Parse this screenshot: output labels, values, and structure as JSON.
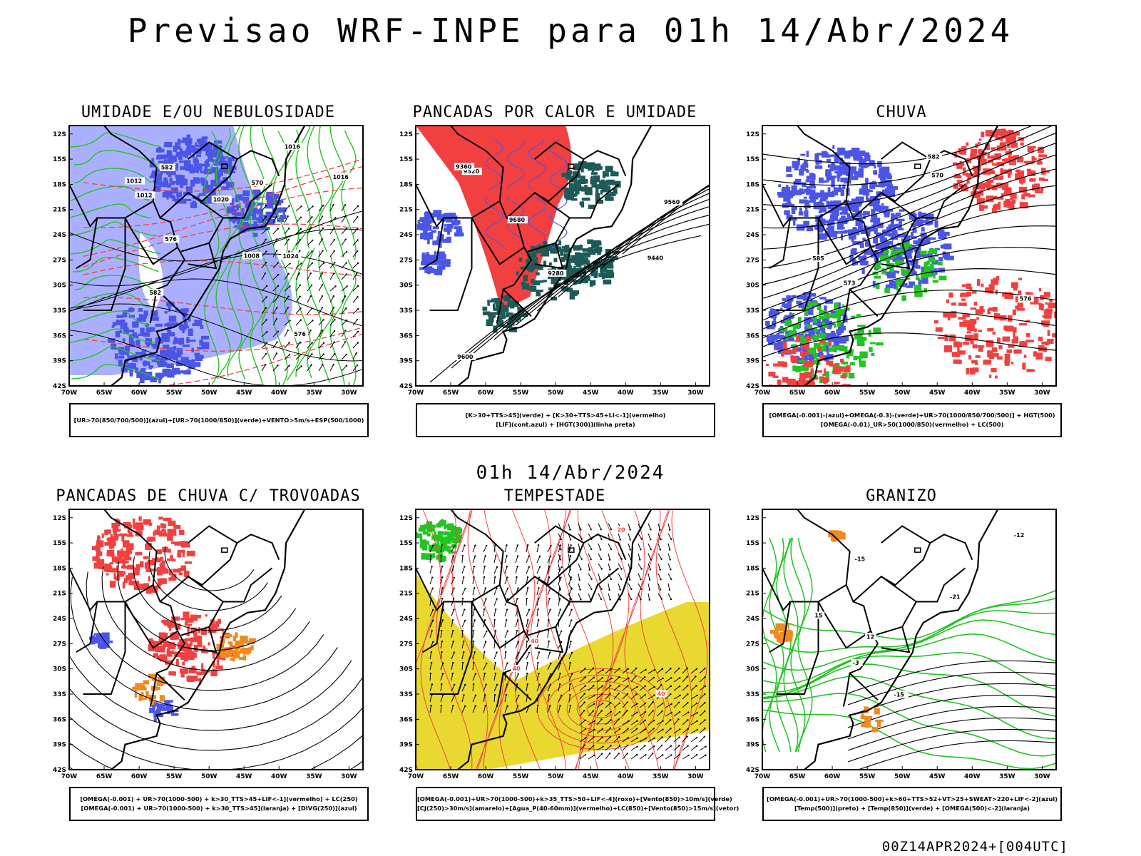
{
  "main_title": "Previsao WRF-INPE  para 01h 14/Abr/2024",
  "mid_title": "01h 14/Abr/2024",
  "footer": "00Z14APR2024+[004UTC]",
  "lat_labels": [
    "12S",
    "15S",
    "18S",
    "21S",
    "24S",
    "27S",
    "30S",
    "33S",
    "36S",
    "39S",
    "42S"
  ],
  "lon_labels": [
    "70W",
    "65W",
    "60W",
    "55W",
    "50W",
    "45W",
    "40W",
    "35W",
    "30W"
  ],
  "colors": {
    "azul": "#4b55e6",
    "azul_claro": "#aab0ff",
    "verde": "#22c422",
    "vermelho": "#f24040",
    "laranja": "#f08a1e",
    "amarelo": "#e8d830",
    "verde_escuro": "#1d5a58",
    "preto": "#000000"
  },
  "panels": [
    {
      "title": "UMIDADE E/OU NEBULOSIDADE",
      "legend": [
        "[UR>70(850/700/500)](azul)+[UR>70(1000/850)](verde)+VENTO>5m/s+ESP(500/1000)"
      ],
      "contour_labels": [
        "1008",
        "1012",
        "1016",
        "1020",
        "1024",
        "576",
        "582",
        "570"
      ]
    },
    {
      "title": "PANCADAS POR CALOR E UMIDADE",
      "legend": [
        "[K>30+TTS>45](verde)  +  [K>30+TTS>45+LI<-1](vermelho)",
        "[LIF](cont.azul)  +  [HGT(300)](linha preta)"
      ],
      "contour_labels": [
        "9680",
        "9600",
        "9520",
        "9440",
        "9360",
        "9280",
        "9560"
      ]
    },
    {
      "title": "CHUVA",
      "legend": [
        "[OMEGA(-0.001)-(azul)+OMEGA(-0.3)-(verde)+UR>70(1000/850/700/500)]  +  HGT(500)",
        "[OMEGA(-0.01)_UR>50(1000/850)(vermelho)  +  LC(500)"
      ],
      "contour_labels": [
        "576",
        "573",
        "570",
        "582",
        "585"
      ]
    },
    {
      "title": "PANCADAS DE CHUVA C/ TROVOADAS",
      "legend": [
        "[OMEGA(-0.001) + UR>70(1000-500) + k>30_TTS>45+LIF<-1](vermelho) + LC(250)",
        "[OMEGA(-0.001) + UR>70(1000-500) + k>30_TTS>45](laranja) + [DIVG(250)](azul)"
      ],
      "contour_labels": []
    },
    {
      "title": "TEMPESTADE",
      "legend": [
        "[OMEGA(-0.001)+UR>70(1000-500)+k>35_TTS>50+LIF<-4](roxo)+[Vento(850)>10m/s](verde)",
        "[CJ(250)>30m/s](amarelo)+[Agua_P(40-60mm)](vermelho)+LC(850)+[Vento(850)>15m/s](vetor)"
      ],
      "contour_labels": [
        "40",
        "40",
        "40",
        "20"
      ]
    },
    {
      "title": "GRANIZO",
      "legend": [
        "[OMEGA(-0.001)+UR>70(1000-500)+k>60+TTS>52+VT>25+SWEAT>220+LIF<-2](azul)",
        "[Temp(500)](preto) + [Temp(850)](verde) + [OMEGA(500)<-2](laranja)"
      ],
      "contour_labels": [
        "-3",
        "-12",
        "-15",
        "-15",
        "-21",
        "15",
        "12"
      ]
    }
  ]
}
